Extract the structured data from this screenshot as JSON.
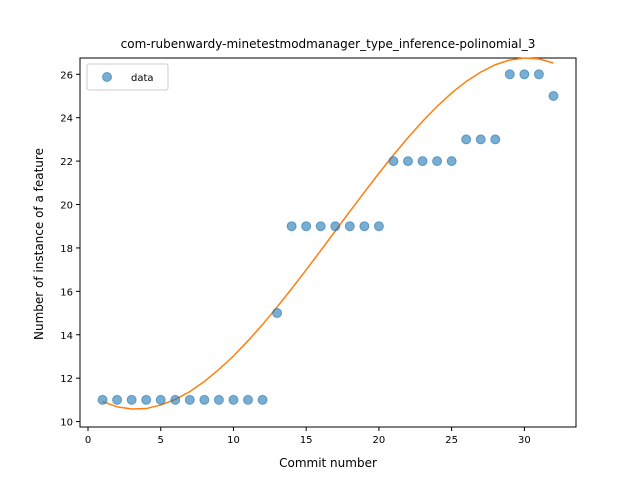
{
  "chart_data": {
    "type": "scatter",
    "title": "com-rubenwardy-minetestmodmanager_type_inference-polinomial_3",
    "xlabel": "Commit number",
    "ylabel": "Number of instance of a feature",
    "xlim": [
      -0.55,
      33.55
    ],
    "ylim": [
      9.75,
      26.75
    ],
    "xticks": [
      0,
      5,
      10,
      15,
      20,
      25,
      30
    ],
    "yticks": [
      10,
      12,
      14,
      16,
      18,
      20,
      22,
      24,
      26
    ],
    "grid": false,
    "legend_position": "top-left",
    "series": [
      {
        "name": "data",
        "kind": "scatter",
        "color": "#1f77b4",
        "x": [
          1,
          2,
          3,
          4,
          5,
          6,
          7,
          8,
          9,
          10,
          11,
          12,
          13,
          14,
          15,
          16,
          17,
          18,
          19,
          20,
          21,
          22,
          23,
          24,
          25,
          26,
          27,
          28,
          29,
          30,
          31,
          32
        ],
        "y": [
          11,
          11,
          11,
          11,
          11,
          11,
          11,
          11,
          11,
          11,
          11,
          11,
          15,
          19,
          19,
          19,
          19,
          19,
          19,
          19,
          22,
          22,
          22,
          22,
          22,
          23,
          23,
          23,
          26,
          26,
          26,
          25
        ]
      },
      {
        "kind": "line",
        "color": "#ff7f0e",
        "x": [
          1,
          2,
          3,
          4,
          5,
          6,
          7,
          8,
          9,
          10,
          11,
          12,
          13,
          14,
          15,
          16,
          17,
          18,
          19,
          20,
          21,
          22,
          23,
          24,
          25,
          26,
          27,
          28,
          29,
          30,
          31,
          32
        ],
        "y": [
          10.92,
          10.68,
          10.58,
          10.6,
          10.76,
          11.02,
          11.38,
          11.85,
          12.4,
          13.02,
          13.72,
          14.47,
          15.28,
          16.12,
          16.99,
          17.88,
          18.78,
          19.68,
          20.57,
          21.44,
          22.28,
          23.08,
          23.83,
          24.52,
          25.14,
          25.67,
          26.1,
          26.44,
          26.66,
          26.75,
          26.71,
          26.52
        ]
      }
    ]
  }
}
